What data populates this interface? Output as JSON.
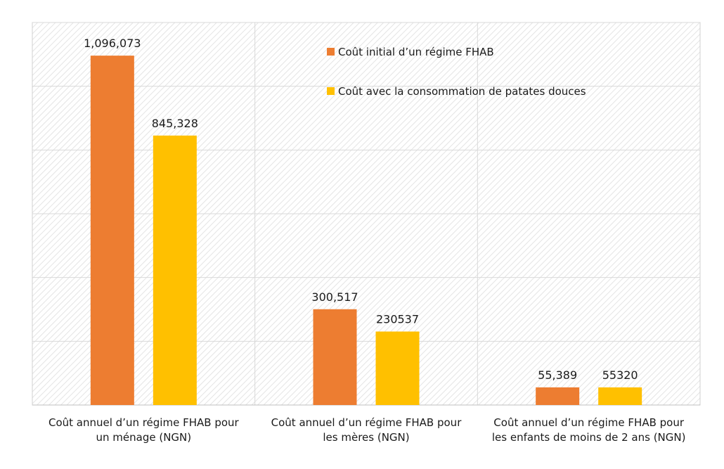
{
  "chart_data": {
    "type": "bar",
    "categories": [
      [
        "Coût annuel d’un régime FHAB pour",
        "un ménage (NGN)"
      ],
      [
        "Coût annuel d’un régime FHAB pour",
        "les mères (NGN)"
      ],
      [
        "Coût annuel d’un régime FHAB pour",
        "les enfants de moins de 2 ans (NGN)"
      ]
    ],
    "series": [
      {
        "name": "Coût initial d’un régime FHAB",
        "color": "#ED7D31",
        "values": [
          1096073,
          300517,
          55389
        ],
        "labels": [
          "1,096,073",
          "300,517",
          "55,389"
        ]
      },
      {
        "name": "Coût avec la consommation de patates douces",
        "color": "#FFC000",
        "values": [
          845328,
          230537,
          55320
        ],
        "labels": [
          "845,328",
          "230537",
          "55320"
        ]
      }
    ],
    "ylim": [
      0,
      1200000
    ],
    "ytick_step": 200000,
    "grid": true,
    "legend": "top-right"
  }
}
